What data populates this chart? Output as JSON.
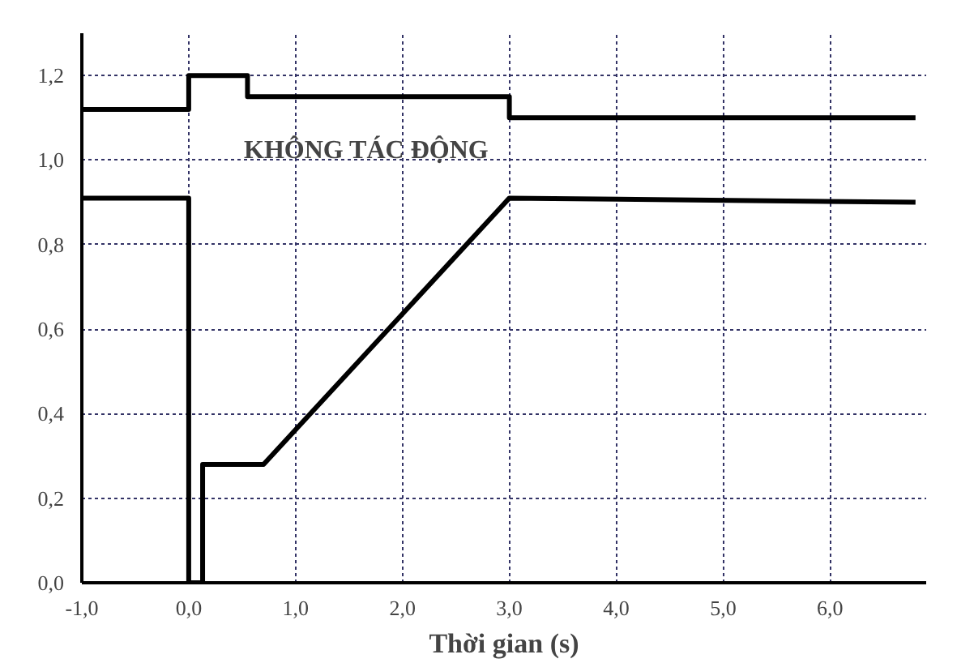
{
  "chart_data": {
    "type": "line",
    "xlabel": "Thời gian (s)",
    "annotations": [
      "KHÔNG TÁC ĐỘNG"
    ],
    "series": [
      {
        "color": "#000000",
        "x": [
          -1,
          0,
          0,
          0.55,
          0.55,
          3.0,
          3.0,
          6.8
        ],
        "values": [
          1.12,
          1.12,
          1.2,
          1.2,
          1.15,
          1.15,
          1.1,
          1.1
        ]
      },
      {
        "color": "#000000",
        "x": [
          -1,
          0,
          0,
          0.13,
          0.13,
          0.7,
          3.0,
          6.8
        ],
        "values": [
          0.91,
          0.91,
          0,
          0,
          0.28,
          0.28,
          0.91,
          0.9
        ]
      }
    ],
    "xlim": [
      -1,
      6.9
    ],
    "ylim": [
      0,
      1.3
    ],
    "xticks": [
      {
        "value": -1,
        "label": "-1,0"
      },
      {
        "value": 0,
        "label": "0,0"
      },
      {
        "value": 1,
        "label": "1,0"
      },
      {
        "value": 2,
        "label": "2,0"
      },
      {
        "value": 3,
        "label": "3,0"
      },
      {
        "value": 4,
        "label": "4,0"
      },
      {
        "value": 5,
        "label": "5,0"
      },
      {
        "value": 6,
        "label": "6,0"
      }
    ],
    "yticks": [
      {
        "value": 0,
        "label": "0,0"
      },
      {
        "value": 0.2,
        "label": "0,2"
      },
      {
        "value": 0.4,
        "label": "0,4"
      },
      {
        "value": 0.6,
        "label": "0,6"
      },
      {
        "value": 0.8,
        "label": "0,8"
      },
      {
        "value": 1.0,
        "label": "1,0"
      },
      {
        "value": 1.2,
        "label": "1,2"
      }
    ],
    "grid": true,
    "line_style": "solid",
    "marker": "none"
  }
}
